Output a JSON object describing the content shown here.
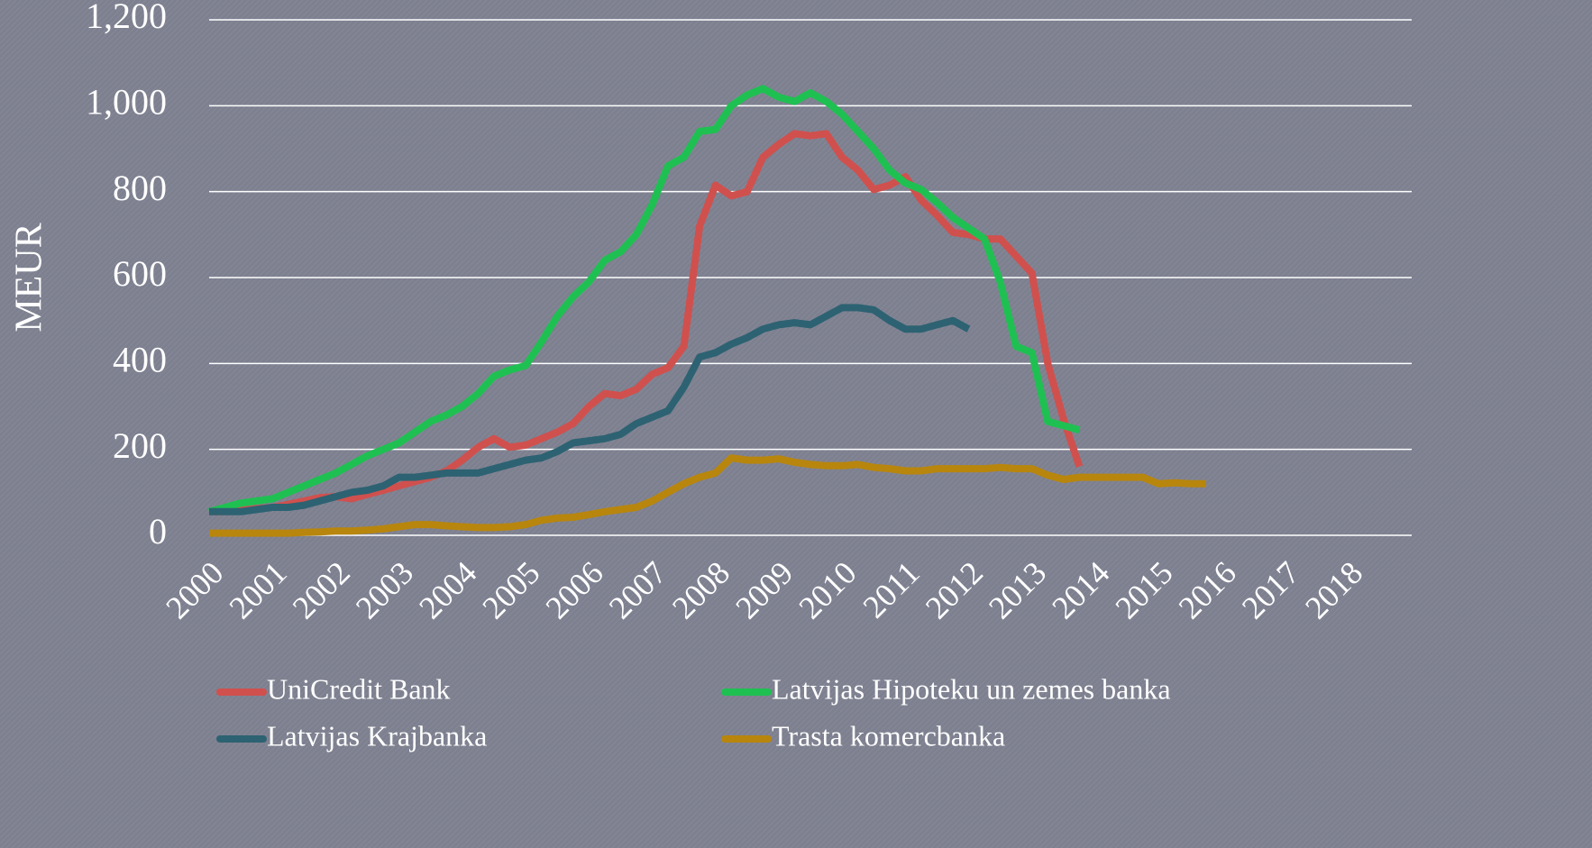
{
  "chart_data": {
    "type": "line",
    "ylabel": "MEUR",
    "x": [
      2000,
      2000.25,
      2000.5,
      2000.75,
      2001,
      2001.25,
      2001.5,
      2001.75,
      2002,
      2002.25,
      2002.5,
      2002.75,
      2003,
      2003.25,
      2003.5,
      2003.75,
      2004,
      2004.25,
      2004.5,
      2004.75,
      2005,
      2005.25,
      2005.5,
      2005.75,
      2006,
      2006.25,
      2006.5,
      2006.75,
      2007,
      2007.25,
      2007.5,
      2007.75,
      2008,
      2008.25,
      2008.5,
      2008.75,
      2009,
      2009.25,
      2009.5,
      2009.75,
      2010,
      2010.25,
      2010.5,
      2010.75,
      2011,
      2011.25,
      2011.5,
      2011.75,
      2012,
      2012.25,
      2012.5,
      2012.75,
      2013,
      2013.25,
      2013.5,
      2013.75,
      2014,
      2014.25,
      2014.5,
      2014.75,
      2015,
      2015.25,
      2015.5,
      2015.75
    ],
    "series": [
      {
        "name": "UniCredit Bank",
        "color": "#d0504e",
        "values": [
          55,
          55,
          58,
          62,
          65,
          72,
          80,
          88,
          90,
          85,
          95,
          105,
          115,
          125,
          135,
          150,
          175,
          205,
          225,
          205,
          210,
          225,
          240,
          260,
          300,
          330,
          325,
          340,
          375,
          390,
          440,
          720,
          815,
          790,
          800,
          880,
          910,
          935,
          930,
          935,
          880,
          850,
          805,
          815,
          835,
          780,
          745,
          705,
          700,
          690,
          690,
          650,
          610,
          400,
          270,
          160,
          null,
          null,
          null,
          null,
          null,
          null,
          null,
          null
        ]
      },
      {
        "name": "Latvijas Hipoteku un zemes banka",
        "color": "#1fc052",
        "values": [
          55,
          65,
          75,
          80,
          85,
          100,
          115,
          130,
          145,
          165,
          185,
          200,
          215,
          240,
          265,
          280,
          300,
          330,
          370,
          385,
          395,
          450,
          510,
          555,
          590,
          640,
          660,
          700,
          770,
          860,
          880,
          940,
          945,
          1000,
          1025,
          1040,
          1020,
          1010,
          1030,
          1010,
          980,
          940,
          900,
          850,
          820,
          805,
          775,
          740,
          715,
          690,
          590,
          440,
          425,
          265,
          255,
          245,
          null,
          null,
          null,
          null,
          null,
          null,
          null,
          null
        ]
      },
      {
        "name": "Latvijas Krajbanka",
        "color": "#2d6272",
        "values": [
          55,
          55,
          55,
          60,
          65,
          65,
          70,
          80,
          90,
          100,
          105,
          115,
          135,
          135,
          140,
          145,
          145,
          145,
          155,
          165,
          175,
          180,
          195,
          215,
          220,
          225,
          235,
          260,
          275,
          290,
          345,
          415,
          425,
          445,
          460,
          480,
          490,
          495,
          490,
          510,
          530,
          530,
          525,
          500,
          480,
          480,
          490,
          500,
          480,
          null,
          null,
          null,
          null,
          null,
          null,
          null,
          null,
          null,
          null,
          null,
          null,
          null,
          null,
          null
        ]
      },
      {
        "name": "Trasta komercbanka",
        "color": "#b8860d",
        "values": [
          5,
          5,
          5,
          5,
          5,
          5,
          7,
          8,
          10,
          10,
          12,
          15,
          20,
          25,
          25,
          22,
          20,
          18,
          18,
          20,
          25,
          35,
          40,
          42,
          48,
          55,
          60,
          65,
          80,
          100,
          120,
          135,
          145,
          180,
          175,
          175,
          178,
          170,
          165,
          162,
          162,
          165,
          158,
          155,
          150,
          150,
          155,
          155,
          155,
          155,
          158,
          155,
          155,
          140,
          130,
          135,
          135,
          135,
          135,
          135,
          120,
          122,
          120,
          120
        ]
      }
    ],
    "xlim": [
      2000,
      2019
    ],
    "xticks": [
      2000,
      2001,
      2002,
      2003,
      2004,
      2005,
      2006,
      2007,
      2008,
      2009,
      2010,
      2011,
      2012,
      2013,
      2014,
      2015,
      2016,
      2017,
      2018
    ],
    "ylim": [
      0,
      1200
    ],
    "yticks": [
      0,
      200,
      400,
      600,
      800,
      {
        "value": 1000,
        "label": "1,000"
      },
      {
        "value": 1200,
        "label": "1,200"
      }
    ],
    "grid": true,
    "legend": "bottom"
  }
}
